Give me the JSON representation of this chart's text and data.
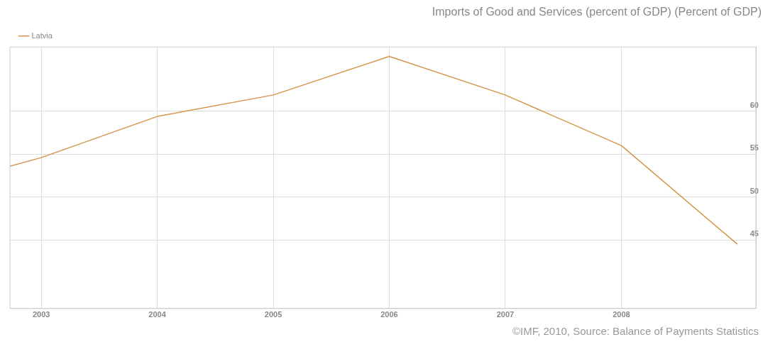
{
  "chart_data": {
    "type": "line",
    "title": "Imports of Good and Services (percent of GDP) (Percent of GDP)",
    "x": [
      2002.73,
      2003,
      2004,
      2005,
      2006,
      2007,
      2008,
      2009
    ],
    "series": [
      {
        "name": "Latvia",
        "color": "#d4954a",
        "values": [
          53.6,
          54.6,
          59.4,
          61.9,
          66.4,
          61.9,
          56.0,
          44.5
        ]
      }
    ],
    "xlim": [
      2002.73,
      2009.16
    ],
    "xticks": [
      2003,
      2004,
      2005,
      2006,
      2007,
      2008
    ],
    "ylim": [
      37,
      67.5
    ],
    "yticks": [
      45,
      50,
      55,
      60
    ],
    "grid": true,
    "legend": "top left",
    "marker": "none",
    "line_style": "solid",
    "annotations": [
      "©IMF, 2010, Source: Balance of Payments Statistics"
    ]
  }
}
